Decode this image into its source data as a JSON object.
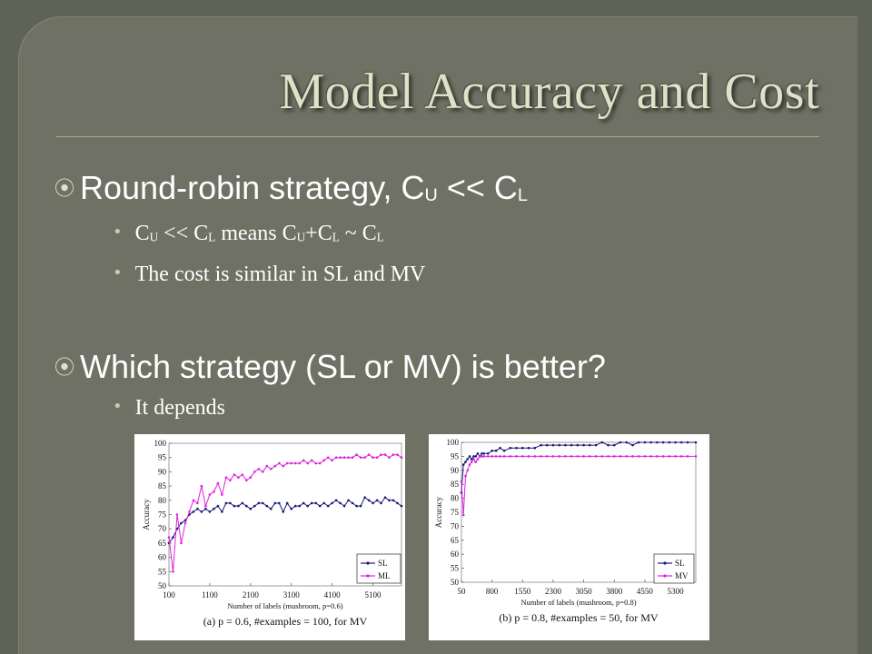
{
  "slide": {
    "title": "Model Accuracy and Cost",
    "bullets": [
      {
        "pre": "Round-robin strategy, C",
        "sub1": "U",
        "mid": " << C",
        "sub2": "L"
      },
      {
        "text_parts": [
          "C",
          "U",
          " << C",
          "L",
          " means C",
          "U",
          "+C",
          "L",
          " ~ C",
          "L"
        ]
      },
      {
        "text": "The cost is similar in SL and MV"
      },
      {
        "text": "Which strategy (SL or MV) is better?"
      },
      {
        "text": "It depends"
      }
    ]
  },
  "colors": {
    "sl": "#1a1a7a",
    "mv": "#e020e0",
    "background": "#6f7164",
    "title": "#dfe2c7"
  },
  "chart_data": [
    {
      "type": "line",
      "ylabel": "Accuracy",
      "xlabel": "Number of labels (mushroom, p=0.6)",
      "caption": "(a) p = 0.6, #examples = 100, for MV",
      "ylim": [
        50,
        100
      ],
      "yticks": [
        "100",
        "95",
        "90",
        "85",
        "80",
        "75",
        "70",
        "65",
        "60",
        "55",
        "50"
      ],
      "xlim": [
        100,
        5800
      ],
      "xticks": [
        {
          "label": "100",
          "v": 100
        },
        {
          "label": "1100",
          "v": 1100
        },
        {
          "label": "2100",
          "v": 2100
        },
        {
          "label": "3100",
          "v": 3100
        },
        {
          "label": "4100",
          "v": 4100
        },
        {
          "label": "5100",
          "v": 5100
        }
      ],
      "legend": [
        "SL",
        "ML"
      ],
      "legend_position": "bottom-right",
      "series": [
        {
          "name": "SL",
          "x": [
            100,
            200,
            300,
            400,
            500,
            600,
            700,
            800,
            900,
            1000,
            1100,
            1200,
            1300,
            1400,
            1500,
            1600,
            1700,
            1800,
            1900,
            2000,
            2100,
            2200,
            2300,
            2400,
            2500,
            2600,
            2700,
            2800,
            2900,
            3000,
            3100,
            3200,
            3300,
            3400,
            3500,
            3600,
            3700,
            3800,
            3900,
            4000,
            4100,
            4200,
            4300,
            4400,
            4500,
            4600,
            4700,
            4800,
            4900,
            5000,
            5100,
            5200,
            5300,
            5400,
            5500,
            5600,
            5700,
            5800
          ],
          "y": [
            65,
            67,
            70,
            72,
            73,
            75,
            76,
            77,
            76,
            77,
            76,
            77,
            78,
            76,
            79,
            79,
            78,
            78,
            79,
            78,
            77,
            78,
            79,
            79,
            78,
            77,
            79,
            79,
            76,
            79,
            77,
            78,
            78,
            79,
            78,
            79,
            79,
            78,
            79,
            78,
            79,
            80,
            79,
            78,
            80,
            79,
            78,
            78,
            81,
            80,
            79,
            80,
            79,
            81,
            80,
            80,
            79,
            78
          ]
        },
        {
          "name": "ML",
          "x": [
            100,
            200,
            300,
            400,
            500,
            600,
            700,
            800,
            900,
            1000,
            1100,
            1200,
            1300,
            1400,
            1500,
            1600,
            1700,
            1800,
            1900,
            2000,
            2100,
            2200,
            2300,
            2400,
            2500,
            2600,
            2700,
            2800,
            2900,
            3000,
            3100,
            3200,
            3300,
            3400,
            3500,
            3600,
            3700,
            3800,
            3900,
            4000,
            4100,
            4200,
            4300,
            4400,
            4500,
            4600,
            4700,
            4800,
            4900,
            5000,
            5100,
            5200,
            5300,
            5400,
            5500,
            5600,
            5700,
            5800
          ],
          "y": [
            67,
            55,
            75,
            65,
            72,
            76,
            80,
            79,
            85,
            78,
            82,
            83,
            86,
            82,
            88,
            87,
            89,
            88,
            89,
            87,
            88,
            90,
            91,
            90,
            92,
            91,
            92,
            93,
            92,
            93,
            93,
            93,
            93,
            94,
            93,
            94,
            93,
            93,
            94,
            95,
            94,
            95,
            95,
            95,
            95,
            95,
            96,
            95,
            95,
            96,
            95,
            95,
            96,
            96,
            95,
            96,
            96,
            95
          ]
        }
      ]
    },
    {
      "type": "line",
      "ylabel": "Accuracy",
      "xlabel": "Number of labels (mushroom, p=0.8)",
      "caption": "(b) p = 0.8, #examples = 50, for MV",
      "ylim": [
        50,
        100
      ],
      "yticks": [
        "100",
        "95",
        "90",
        "85",
        "80",
        "75",
        "70",
        "65",
        "60",
        "55",
        "50"
      ],
      "xlim": [
        50,
        5800
      ],
      "xticks": [
        {
          "label": "50",
          "v": 50
        },
        {
          "label": "800",
          "v": 800
        },
        {
          "label": "1550",
          "v": 1550
        },
        {
          "label": "2300",
          "v": 2300
        },
        {
          "label": "3050",
          "v": 3050
        },
        {
          "label": "3800",
          "v": 3800
        },
        {
          "label": "4550",
          "v": 4550
        },
        {
          "label": "5300",
          "v": 5300
        }
      ],
      "legend": [
        "SL",
        "MV"
      ],
      "legend_position": "bottom-right",
      "series": [
        {
          "name": "SL",
          "x": [
            50,
            100,
            150,
            200,
            250,
            300,
            350,
            400,
            450,
            500,
            550,
            600,
            700,
            800,
            900,
            1000,
            1100,
            1250,
            1400,
            1550,
            1700,
            1850,
            2000,
            2150,
            2300,
            2450,
            2600,
            2750,
            2900,
            3050,
            3200,
            3350,
            3500,
            3650,
            3800,
            3950,
            4100,
            4250,
            4400,
            4550,
            4700,
            4850,
            5000,
            5150,
            5300,
            5450,
            5600,
            5800
          ],
          "y": [
            82,
            92,
            93,
            94,
            95,
            94,
            95,
            95,
            96,
            95,
            96,
            96,
            96,
            97,
            97,
            98,
            97,
            98,
            98,
            98,
            98,
            98,
            99,
            99,
            99,
            99,
            99,
            99,
            99,
            99,
            99,
            99,
            100,
            99,
            99,
            100,
            100,
            99,
            100,
            100,
            100,
            100,
            100,
            100,
            100,
            100,
            100,
            100
          ]
        },
        {
          "name": "MV",
          "x": [
            50,
            100,
            150,
            200,
            250,
            300,
            350,
            400,
            450,
            500,
            550,
            600,
            700,
            800,
            900,
            1000,
            1100,
            1250,
            1400,
            1550,
            1700,
            1850,
            2000,
            2150,
            2300,
            2450,
            2600,
            2750,
            2900,
            3050,
            3200,
            3350,
            3500,
            3650,
            3800,
            3950,
            4100,
            4250,
            4400,
            4550,
            4700,
            4850,
            5000,
            5150,
            5300,
            5450,
            5600,
            5800
          ],
          "y": [
            86,
            74,
            88,
            90,
            92,
            93,
            94,
            93,
            94,
            95,
            95,
            95,
            95,
            95,
            95,
            95,
            95,
            95,
            95,
            95,
            95,
            95,
            95,
            95,
            95,
            95,
            95,
            95,
            95,
            95,
            95,
            95,
            95,
            95,
            95,
            95,
            95,
            95,
            95,
            95,
            95,
            95,
            95,
            95,
            95,
            95,
            95,
            95
          ]
        }
      ]
    }
  ]
}
